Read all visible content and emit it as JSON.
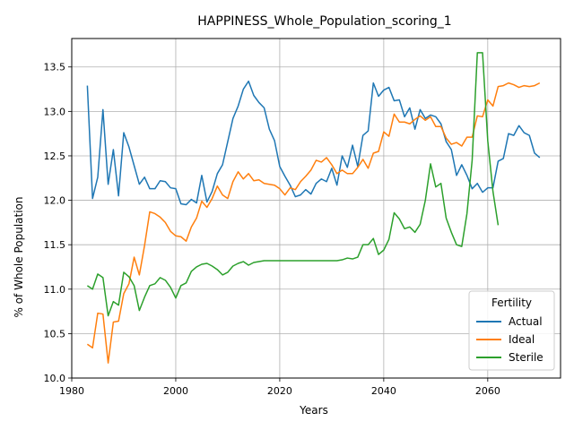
{
  "chart_data": {
    "type": "line",
    "title": "HAPPINESS_Whole_Population_scoring_1",
    "xlabel": "Years",
    "ylabel": "% of Whole Population",
    "xlim": [
      1980,
      2074
    ],
    "ylim": [
      10.0,
      13.82
    ],
    "xticks": [
      1980,
      2000,
      2020,
      2040,
      2060
    ],
    "yticks": [
      10.0,
      10.5,
      11.0,
      11.5,
      12.0,
      12.5,
      13.0,
      13.5
    ],
    "xtick_labels": [
      "1980",
      "2000",
      "2020",
      "2040",
      "2060"
    ],
    "ytick_labels": [
      "10.0",
      "10.5",
      "11.0",
      "11.5",
      "12.0",
      "12.5",
      "13.0",
      "13.5"
    ],
    "grid": true,
    "legend": {
      "title": "Fertility",
      "position": "lower-right"
    },
    "series": [
      {
        "name": "Actual",
        "color": "#1f77b4",
        "x": [
          1983,
          1984,
          1985,
          1986,
          1987,
          1988,
          1989,
          1990,
          1991,
          1992,
          1993,
          1994,
          1995,
          1996,
          1997,
          1998,
          1999,
          2000,
          2001,
          2002,
          2003,
          2004,
          2005,
          2006,
          2007,
          2008,
          2009,
          2010,
          2011,
          2012,
          2013,
          2014,
          2015,
          2016,
          2017,
          2018,
          2019,
          2020,
          2021,
          2022,
          2023,
          2024,
          2025,
          2026,
          2027,
          2028,
          2029,
          2030,
          2031,
          2032,
          2033,
          2034,
          2035,
          2036,
          2037,
          2038,
          2039,
          2040,
          2041,
          2042,
          2043,
          2044,
          2045,
          2046,
          2047,
          2048,
          2049,
          2050,
          2051,
          2052,
          2053,
          2054,
          2055,
          2056,
          2057,
          2058,
          2059,
          2060,
          2061,
          2062,
          2063,
          2064,
          2065,
          2066,
          2067,
          2068,
          2069,
          2070
        ],
        "y": [
          13.29,
          12.02,
          12.26,
          13.02,
          12.18,
          12.57,
          12.05,
          12.76,
          12.6,
          12.39,
          12.18,
          12.26,
          12.13,
          12.13,
          12.22,
          12.21,
          12.14,
          12.13,
          11.96,
          11.95,
          12.01,
          11.97,
          12.28,
          11.98,
          12.1,
          12.3,
          12.4,
          12.66,
          12.92,
          13.06,
          13.25,
          13.34,
          13.18,
          13.1,
          13.04,
          12.8,
          12.67,
          12.38,
          12.27,
          12.17,
          12.04,
          12.06,
          12.12,
          12.07,
          12.19,
          12.24,
          12.21,
          12.36,
          12.17,
          12.5,
          12.37,
          12.62,
          12.38,
          12.73,
          12.78,
          13.32,
          13.17,
          13.24,
          13.27,
          13.12,
          13.13,
          12.94,
          13.04,
          12.8,
          13.02,
          12.92,
          12.96,
          12.94,
          12.86,
          12.66,
          12.57,
          12.28,
          12.4,
          12.28,
          12.13,
          12.19,
          12.09,
          12.14,
          12.14,
          12.44,
          12.47,
          12.75,
          12.73,
          12.84,
          12.76,
          12.73,
          12.53,
          12.48
        ]
      },
      {
        "name": "Ideal",
        "color": "#ff7f0e",
        "x": [
          1983,
          1984,
          1985,
          1986,
          1987,
          1988,
          1989,
          1990,
          1991,
          1992,
          1993,
          1994,
          1995,
          1996,
          1997,
          1998,
          1999,
          2000,
          2001,
          2002,
          2003,
          2004,
          2005,
          2006,
          2007,
          2008,
          2009,
          2010,
          2011,
          2012,
          2013,
          2014,
          2015,
          2016,
          2017,
          2018,
          2019,
          2020,
          2021,
          2022,
          2023,
          2024,
          2025,
          2026,
          2027,
          2028,
          2029,
          2030,
          2031,
          2032,
          2033,
          2034,
          2035,
          2036,
          2037,
          2038,
          2039,
          2040,
          2041,
          2042,
          2043,
          2044,
          2045,
          2046,
          2047,
          2048,
          2049,
          2050,
          2051,
          2052,
          2053,
          2054,
          2055,
          2056,
          2057,
          2058,
          2059,
          2060,
          2061,
          2062,
          2063,
          2064,
          2065,
          2066,
          2067,
          2068,
          2069,
          2070
        ],
        "y": [
          10.38,
          10.34,
          10.73,
          10.72,
          10.17,
          10.63,
          10.64,
          10.95,
          11.06,
          11.36,
          11.16,
          11.49,
          11.87,
          11.85,
          11.81,
          11.75,
          11.65,
          11.6,
          11.59,
          11.54,
          11.7,
          11.8,
          11.99,
          11.92,
          12.02,
          12.16,
          12.06,
          12.02,
          12.21,
          12.32,
          12.24,
          12.3,
          12.22,
          12.23,
          12.19,
          12.18,
          12.17,
          12.13,
          12.06,
          12.14,
          12.12,
          12.21,
          12.27,
          12.34,
          12.45,
          12.43,
          12.48,
          12.4,
          12.3,
          12.34,
          12.3,
          12.3,
          12.37,
          12.46,
          12.36,
          12.53,
          12.55,
          12.77,
          12.72,
          12.97,
          12.88,
          12.88,
          12.86,
          12.91,
          12.95,
          12.9,
          12.94,
          12.83,
          12.83,
          12.7,
          12.63,
          12.65,
          12.61,
          12.71,
          12.71,
          12.95,
          12.94,
          13.13,
          13.06,
          13.28,
          13.29,
          13.32,
          13.3,
          13.27,
          13.29,
          13.28,
          13.29,
          13.32
        ]
      },
      {
        "name": "Sterile",
        "color": "#2ca02c",
        "x": [
          1983,
          1984,
          1985,
          1986,
          1987,
          1988,
          1989,
          1990,
          1991,
          1992,
          1993,
          1994,
          1995,
          1996,
          1997,
          1998,
          1999,
          2000,
          2001,
          2002,
          2003,
          2004,
          2005,
          2006,
          2007,
          2008,
          2009,
          2010,
          2011,
          2012,
          2013,
          2014,
          2015,
          2016,
          2017,
          2018,
          2019,
          2020,
          2021,
          2022,
          2023,
          2024,
          2025,
          2026,
          2027,
          2028,
          2029,
          2030,
          2031,
          2032,
          2033,
          2034,
          2035,
          2036,
          2037,
          2038,
          2039,
          2040,
          2041,
          2042,
          2043,
          2044,
          2045,
          2046,
          2047,
          2048,
          2049,
          2050,
          2051,
          2052,
          2053,
          2054,
          2055,
          2056,
          2057,
          2058,
          2059,
          2060,
          2061,
          2062
        ],
        "y": [
          11.04,
          11.0,
          11.17,
          11.13,
          10.7,
          10.86,
          10.82,
          11.19,
          11.14,
          11.04,
          10.76,
          10.91,
          11.04,
          11.06,
          11.13,
          11.1,
          11.02,
          10.9,
          11.04,
          11.07,
          11.2,
          11.25,
          11.28,
          11.29,
          11.26,
          11.22,
          11.16,
          11.19,
          11.26,
          11.29,
          11.31,
          11.27,
          11.3,
          11.31,
          11.32,
          11.32,
          11.32,
          11.32,
          11.32,
          11.32,
          11.32,
          11.32,
          11.32,
          11.32,
          11.32,
          11.32,
          11.32,
          11.32,
          11.32,
          11.33,
          11.35,
          11.34,
          11.36,
          11.5,
          11.5,
          11.57,
          11.39,
          11.44,
          11.56,
          11.86,
          11.79,
          11.68,
          11.7,
          11.64,
          11.73,
          12.0,
          12.41,
          12.15,
          12.19,
          11.8,
          11.64,
          11.5,
          11.48,
          11.85,
          12.45,
          13.66,
          13.66,
          12.67,
          12.1,
          11.72
        ]
      }
    ]
  }
}
